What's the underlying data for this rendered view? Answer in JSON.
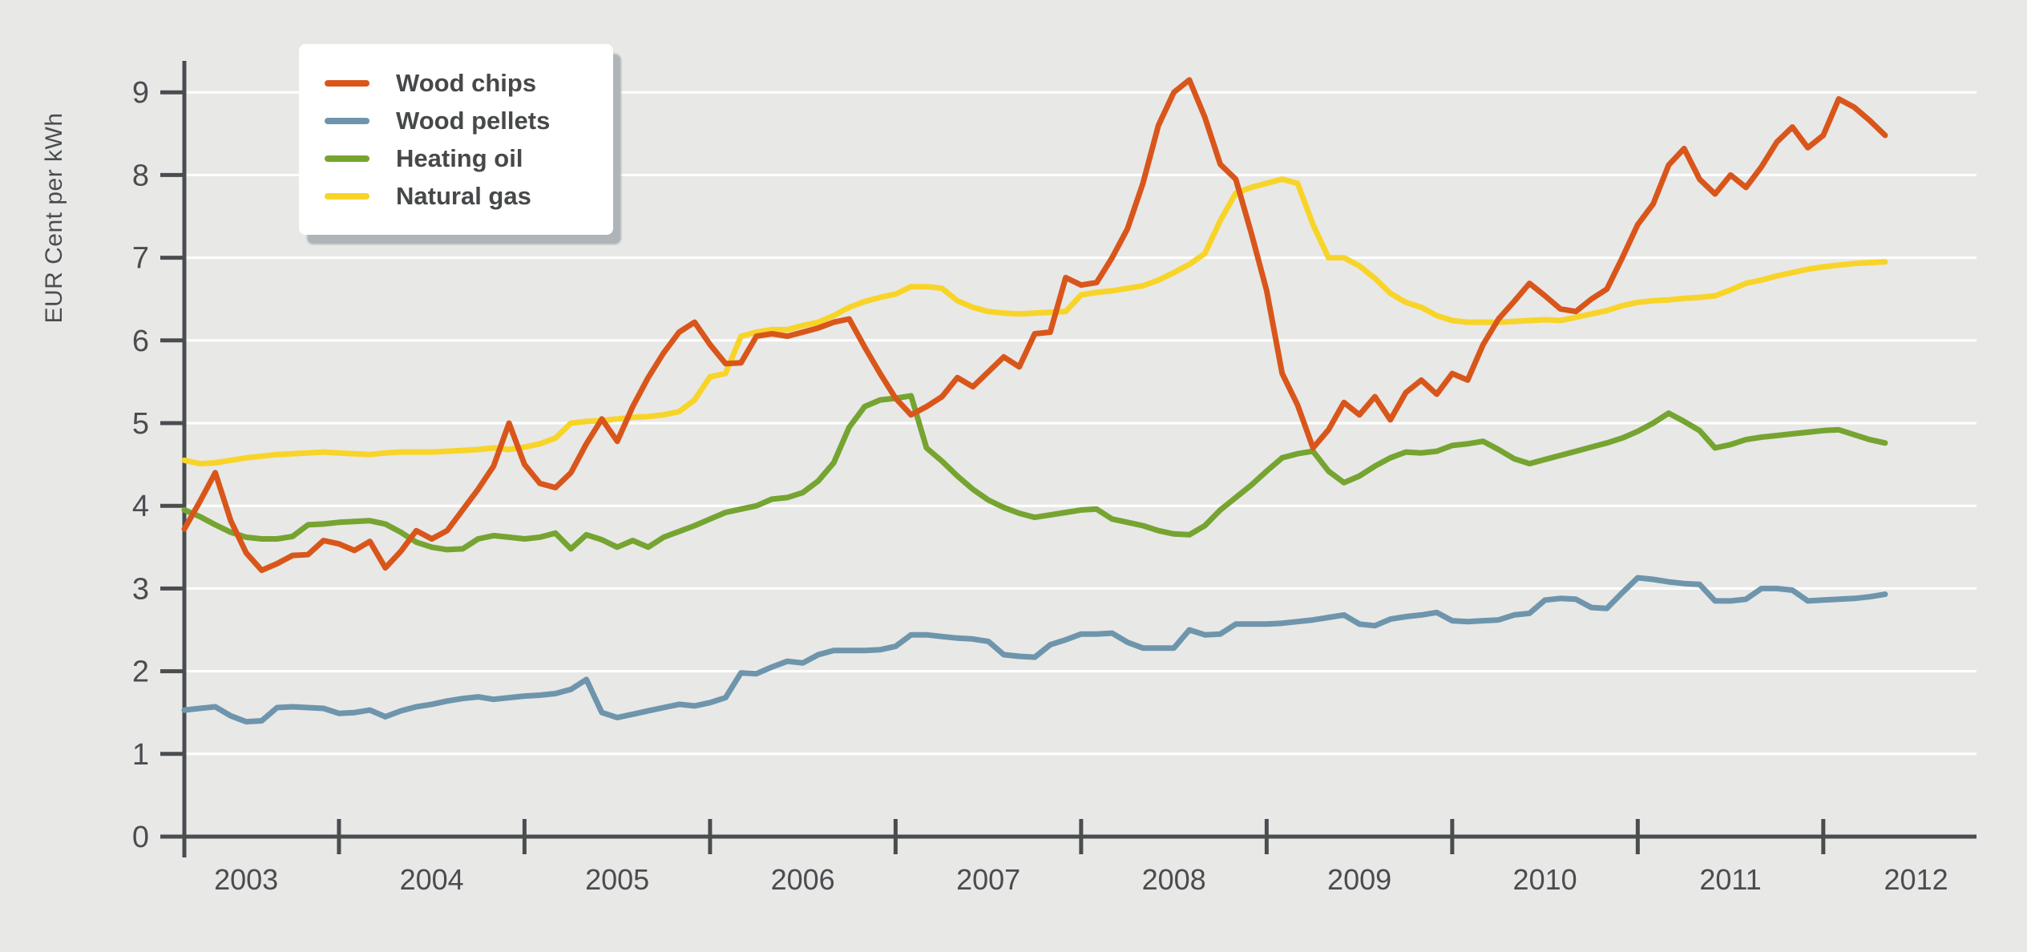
{
  "page": {
    "background_color": "#e8e8e7"
  },
  "chart_data": {
    "type": "line",
    "title": "",
    "ylabel": "EUR Cent per kWh",
    "xlabel": "",
    "ylim": [
      0,
      9
    ],
    "y_ticks": [
      "0",
      "1",
      "2",
      "3",
      "4",
      "5",
      "6",
      "7",
      "8",
      "9"
    ],
    "x_tick_labels": [
      "2003",
      "2004",
      "2005",
      "2006",
      "2007",
      "2008",
      "2009",
      "2010",
      "2011",
      "2012"
    ],
    "x_unit": "month",
    "x_start": "2002-09",
    "x_end": "2011-11",
    "grid": "horizontal-white-lines",
    "legend_position": "top-left",
    "axis_color": "#4a4d4f",
    "grid_color": "#ffffff",
    "series": [
      {
        "name": "Wood chips",
        "color": "#d9561b",
        "values": [
          3.72,
          4.05,
          4.4,
          3.82,
          3.43,
          3.22,
          3.3,
          3.4,
          3.41,
          3.58,
          3.54,
          3.46,
          3.57,
          3.25,
          3.45,
          3.7,
          3.6,
          3.7,
          3.95,
          4.2,
          4.48,
          5.0,
          4.5,
          4.27,
          4.22,
          4.4,
          4.75,
          5.05,
          4.78,
          5.2,
          5.55,
          5.85,
          6.1,
          6.22,
          5.95,
          5.72,
          5.73,
          6.05,
          6.08,
          6.05,
          6.1,
          6.15,
          6.22,
          6.26,
          5.92,
          5.6,
          5.3,
          5.1,
          5.2,
          5.32,
          5.55,
          5.44,
          5.62,
          5.8,
          5.68,
          6.08,
          6.1,
          6.76,
          6.67,
          6.7,
          7.0,
          7.35,
          7.9,
          8.6,
          9.0,
          9.15,
          8.7,
          8.13,
          7.95,
          7.3,
          6.6,
          5.6,
          5.22,
          4.7,
          4.92,
          5.25,
          5.1,
          5.32,
          5.04,
          5.37,
          5.52,
          5.35,
          5.6,
          5.52,
          5.95,
          6.26,
          6.47,
          6.69,
          6.54,
          6.38,
          6.35,
          6.5,
          6.62,
          7.0,
          7.4,
          7.65,
          8.12,
          8.32,
          7.95,
          7.77,
          8.0,
          7.85,
          8.1,
          8.4,
          8.58,
          8.33,
          8.48,
          8.92,
          8.82,
          8.66,
          8.48
        ]
      },
      {
        "name": "Wood pellets",
        "color": "#6e95ac",
        "values": [
          1.53,
          1.55,
          1.57,
          1.46,
          1.39,
          1.4,
          1.56,
          1.57,
          1.56,
          1.55,
          1.49,
          1.5,
          1.53,
          1.45,
          1.52,
          1.57,
          1.6,
          1.64,
          1.67,
          1.69,
          1.66,
          1.68,
          1.7,
          1.71,
          1.73,
          1.78,
          1.9,
          1.5,
          1.44,
          1.48,
          1.52,
          1.56,
          1.6,
          1.58,
          1.62,
          1.68,
          1.98,
          1.97,
          2.05,
          2.12,
          2.1,
          2.2,
          2.25,
          2.25,
          2.25,
          2.26,
          2.3,
          2.44,
          2.44,
          2.42,
          2.4,
          2.39,
          2.36,
          2.2,
          2.18,
          2.17,
          2.32,
          2.38,
          2.45,
          2.45,
          2.46,
          2.35,
          2.28,
          2.28,
          2.28,
          2.5,
          2.44,
          2.45,
          2.57,
          2.57,
          2.57,
          2.58,
          2.6,
          2.62,
          2.65,
          2.68,
          2.57,
          2.55,
          2.63,
          2.66,
          2.68,
          2.71,
          2.61,
          2.6,
          2.61,
          2.62,
          2.68,
          2.7,
          2.86,
          2.88,
          2.87,
          2.77,
          2.76,
          2.95,
          3.13,
          3.11,
          3.08,
          3.06,
          3.05,
          2.85,
          2.85,
          2.87,
          3.0,
          3.0,
          2.98,
          2.85,
          2.86,
          2.87,
          2.88,
          2.9,
          2.93
        ]
      },
      {
        "name": "Heating oil",
        "color": "#76a431",
        "values": [
          3.95,
          3.87,
          3.77,
          3.68,
          3.62,
          3.6,
          3.6,
          3.63,
          3.77,
          3.78,
          3.8,
          3.81,
          3.82,
          3.78,
          3.68,
          3.56,
          3.5,
          3.47,
          3.48,
          3.6,
          3.64,
          3.62,
          3.6,
          3.62,
          3.67,
          3.48,
          3.65,
          3.59,
          3.5,
          3.58,
          3.5,
          3.62,
          3.69,
          3.76,
          3.84,
          3.92,
          3.96,
          4.0,
          4.08,
          4.1,
          4.16,
          4.3,
          4.52,
          4.95,
          5.2,
          5.28,
          5.3,
          5.33,
          4.7,
          4.54,
          4.36,
          4.2,
          4.07,
          3.98,
          3.91,
          3.86,
          3.89,
          3.92,
          3.95,
          3.96,
          3.84,
          3.8,
          3.76,
          3.7,
          3.66,
          3.65,
          3.76,
          3.95,
          4.1,
          4.25,
          4.42,
          4.58,
          4.63,
          4.66,
          4.42,
          4.28,
          4.36,
          4.48,
          4.58,
          4.65,
          4.64,
          4.66,
          4.73,
          4.75,
          4.78,
          4.68,
          4.57,
          4.51,
          4.56,
          4.61,
          4.66,
          4.71,
          4.76,
          4.82,
          4.9,
          5.0,
          5.12,
          5.02,
          4.91,
          4.7,
          4.74,
          4.8,
          4.83,
          4.85,
          4.87,
          4.89,
          4.91,
          4.92,
          4.86,
          4.8,
          4.76
        ]
      },
      {
        "name": "Natural gas",
        "color": "#f8d428",
        "values": [
          4.55,
          4.51,
          4.52,
          4.55,
          4.58,
          4.6,
          4.62,
          4.63,
          4.64,
          4.65,
          4.64,
          4.63,
          4.62,
          4.64,
          4.65,
          4.65,
          4.65,
          4.66,
          4.67,
          4.68,
          4.7,
          4.68,
          4.71,
          4.75,
          4.82,
          5.0,
          5.02,
          5.03,
          5.05,
          5.07,
          5.08,
          5.1,
          5.14,
          5.28,
          5.56,
          5.6,
          6.05,
          6.1,
          6.13,
          6.13,
          6.18,
          6.22,
          6.3,
          6.4,
          6.47,
          6.52,
          6.56,
          6.65,
          6.65,
          6.63,
          6.48,
          6.4,
          6.35,
          6.33,
          6.32,
          6.33,
          6.34,
          6.35,
          6.55,
          6.58,
          6.6,
          6.63,
          6.66,
          6.73,
          6.82,
          6.92,
          7.05,
          7.45,
          7.78,
          7.85,
          7.9,
          7.95,
          7.9,
          7.4,
          7.0,
          7.0,
          6.9,
          6.75,
          6.57,
          6.46,
          6.4,
          6.3,
          6.24,
          6.22,
          6.22,
          6.22,
          6.23,
          6.24,
          6.25,
          6.24,
          6.28,
          6.32,
          6.36,
          6.42,
          6.46,
          6.48,
          6.49,
          6.51,
          6.52,
          6.54,
          6.61,
          6.69,
          6.73,
          6.78,
          6.82,
          6.86,
          6.89,
          6.91,
          6.93,
          6.94,
          6.95
        ]
      }
    ]
  }
}
